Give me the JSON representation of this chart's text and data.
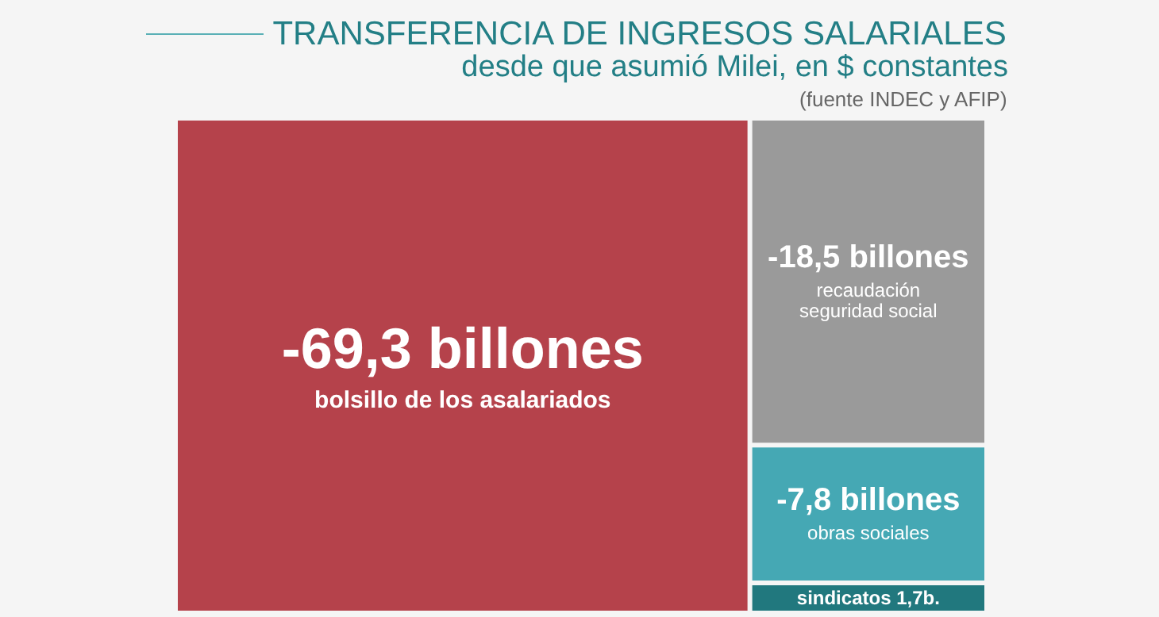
{
  "chart_data": {
    "type": "other",
    "title": "TRANSFERENCIA DE INGRESOS SALARIALES",
    "subtitle": "desde que asumió Milei, en $ constantes",
    "annotations": [
      "(fuente INDEC y AFIP)"
    ],
    "categories": [
      "bolsillo de los asalariados",
      "recaudación seguridad social",
      "obras sociales",
      "sindicatos"
    ],
    "values": [
      -69.3,
      -18.5,
      -7.8,
      1.7
    ],
    "value_labels": [
      "-69,3 billones",
      "-18,5 billones",
      "-7,8 billones",
      "1,7b."
    ],
    "colors": [
      "#b5424b",
      "#9a9a9a",
      "#45a8b4",
      "#21787e"
    ]
  }
}
